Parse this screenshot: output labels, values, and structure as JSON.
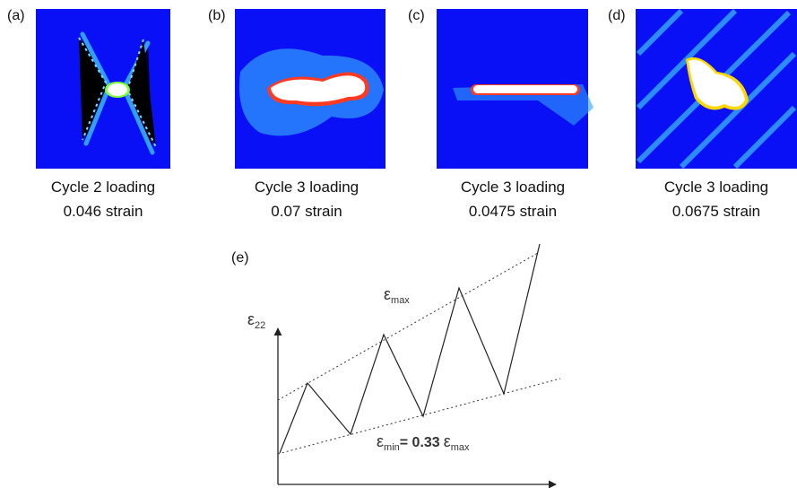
{
  "panels": [
    {
      "label": "(a)",
      "caption": [
        "Cycle 2 loading",
        "0.046 strain"
      ]
    },
    {
      "label": "(b)",
      "caption": [
        "Cycle 3 loading",
        "0.07 strain"
      ]
    },
    {
      "label": "(c)",
      "caption": [
        "Cycle 3 loading",
        "0.0475 strain"
      ]
    },
    {
      "label": "(d)",
      "caption": [
        "Cycle 3 loading",
        "0.0675 strain"
      ]
    }
  ],
  "schematic": {
    "label": "(e)",
    "y_axis_label": {
      "symbol": "ε",
      "subscript": "22"
    },
    "upper_bound_label": {
      "symbol": "ε",
      "subscript": "max"
    },
    "lower_bound_label": {
      "symbol": "ε",
      "subscript": "min",
      "equation": "= 0.33",
      "symbol2": "ε",
      "subscript2": "max"
    }
  }
}
